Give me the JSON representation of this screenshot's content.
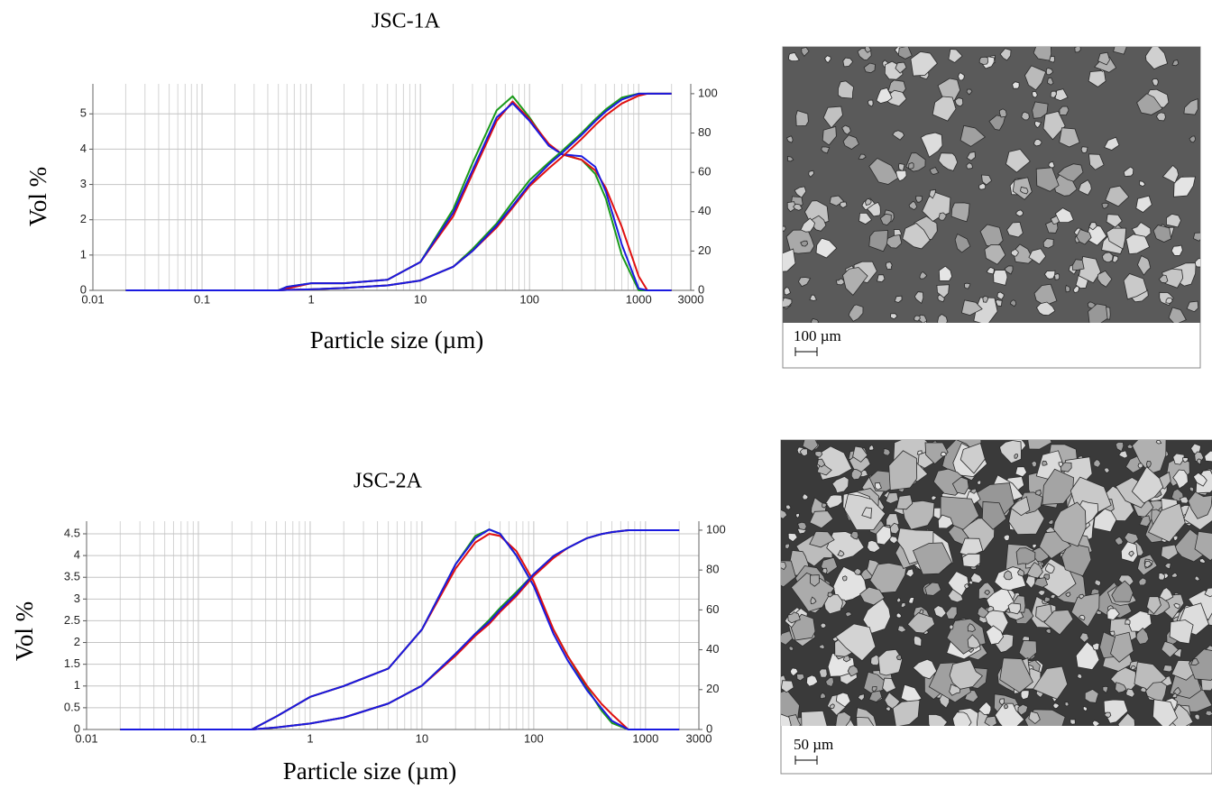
{
  "chart_data": [
    {
      "type": "line",
      "title": "JSC-1A",
      "x_label": "Particle size (µm)",
      "y_label": "Vol %",
      "log_x": true,
      "grid": true,
      "xlim": [
        0.01,
        3000
      ],
      "xticks": [
        0.01,
        0.1,
        1,
        10,
        100,
        1000,
        3000
      ],
      "ylim": [
        0,
        5.85
      ],
      "yticks": [
        0,
        1,
        2,
        3,
        4,
        5
      ],
      "y2lim": [
        0,
        105
      ],
      "y2ticks": [
        0,
        20,
        40,
        60,
        80,
        100
      ],
      "x": [
        0.02,
        0.5,
        0.6,
        1,
        2,
        5,
        10,
        20,
        30,
        50,
        70,
        100,
        150,
        200,
        300,
        400,
        500,
        700,
        1000,
        1200,
        2000
      ],
      "series": [
        {
          "color": "#1a9a1a",
          "values": [
            0,
            0,
            0.1,
            0.2,
            0.2,
            0.3,
            0.8,
            2.3,
            3.6,
            5.1,
            5.5,
            4.9,
            4.1,
            3.85,
            3.7,
            3.3,
            2.6,
            1.0,
            0,
            0,
            0
          ]
        },
        {
          "color": "#e01010",
          "values": [
            0,
            0,
            0.05,
            0.2,
            0.2,
            0.3,
            0.8,
            2.1,
            3.3,
            4.8,
            5.35,
            4.85,
            4.15,
            3.85,
            3.7,
            3.4,
            2.9,
            1.8,
            0.4,
            0,
            0
          ]
        },
        {
          "color": "#1a1ae0",
          "values": [
            0,
            0,
            0.1,
            0.2,
            0.2,
            0.3,
            0.8,
            2.2,
            3.4,
            4.9,
            5.3,
            4.8,
            4.1,
            3.85,
            3.8,
            3.5,
            2.8,
            1.3,
            0.05,
            0,
            0
          ]
        },
        {
          "color": "#1a9a1a",
          "axis": "y2",
          "values": [
            0,
            0,
            0.2,
            0.5,
            1.2,
            2.5,
            5,
            12,
            21,
            34,
            45,
            56,
            65,
            71,
            80,
            87,
            92,
            98,
            100,
            100,
            100
          ]
        },
        {
          "color": "#e01010",
          "axis": "y2",
          "values": [
            0,
            0,
            0.2,
            0.5,
            1.2,
            2.5,
            5,
            12,
            20,
            32,
            42,
            53,
            62,
            68,
            77,
            84,
            89,
            95,
            99,
            100,
            100
          ]
        },
        {
          "color": "#1a1ae0",
          "axis": "y2",
          "values": [
            0,
            0,
            0.2,
            0.5,
            1.2,
            2.5,
            5,
            12,
            20,
            33,
            43,
            54,
            64,
            70,
            79,
            86,
            91,
            97,
            100,
            100,
            100
          ]
        }
      ]
    },
    {
      "type": "line",
      "title": "JSC-2A",
      "x_label": "Particle size (µm)",
      "y_label": "Vol %",
      "log_x": true,
      "grid": true,
      "xlim": [
        0.01,
        3000
      ],
      "xticks": [
        0.01,
        0.1,
        1,
        10,
        100,
        1000,
        3000
      ],
      "ylim": [
        0,
        4.79
      ],
      "yticks": [
        0,
        0.5,
        1,
        1.5,
        2,
        2.5,
        3,
        3.5,
        4,
        4.5
      ],
      "y2lim": [
        0,
        104.5
      ],
      "y2ticks": [
        0,
        20,
        40,
        60,
        80,
        100
      ],
      "x": [
        0.02,
        0.3,
        0.5,
        1,
        2,
        5,
        10,
        20,
        30,
        40,
        50,
        70,
        100,
        150,
        200,
        300,
        400,
        500,
        700,
        1000,
        2000
      ],
      "series": [
        {
          "color": "#1a9a1a",
          "values": [
            0,
            0,
            0.3,
            0.75,
            1.0,
            1.4,
            2.3,
            3.8,
            4.45,
            4.6,
            4.5,
            4.0,
            3.3,
            2.3,
            1.7,
            0.95,
            0.45,
            0.15,
            0,
            0,
            0
          ]
        },
        {
          "color": "#e01010",
          "values": [
            0,
            0,
            0.3,
            0.75,
            1.0,
            1.4,
            2.3,
            3.7,
            4.3,
            4.5,
            4.45,
            4.1,
            3.4,
            2.3,
            1.7,
            1.0,
            0.6,
            0.35,
            0,
            0,
            0
          ]
        },
        {
          "color": "#1a1ae0",
          "values": [
            0,
            0,
            0.3,
            0.75,
            1.0,
            1.4,
            2.3,
            3.8,
            4.4,
            4.6,
            4.5,
            4.0,
            3.3,
            2.2,
            1.6,
            0.9,
            0.5,
            0.2,
            0,
            0,
            0
          ]
        },
        {
          "color": "#1a9a1a",
          "axis": "y2",
          "values": [
            0,
            0,
            1,
            3,
            6,
            13,
            22,
            38,
            48,
            55,
            61,
            69,
            78,
            87,
            91,
            96,
            98,
            99,
            100,
            100,
            100
          ]
        },
        {
          "color": "#e01010",
          "axis": "y2",
          "values": [
            0,
            0,
            1,
            3,
            6,
            13,
            22,
            37,
            47,
            53,
            59,
            67,
            77,
            86,
            91,
            96,
            98,
            99,
            100,
            100,
            100
          ]
        },
        {
          "color": "#1a1ae0",
          "axis": "y2",
          "values": [
            0,
            0,
            1,
            3,
            6,
            13,
            22,
            38,
            48,
            54,
            60,
            68,
            78,
            87,
            91,
            96,
            98,
            99,
            100,
            100,
            100
          ]
        }
      ]
    }
  ],
  "images": [
    {
      "scale_label": "100 µm"
    },
    {
      "scale_label": "50 µm"
    }
  ]
}
